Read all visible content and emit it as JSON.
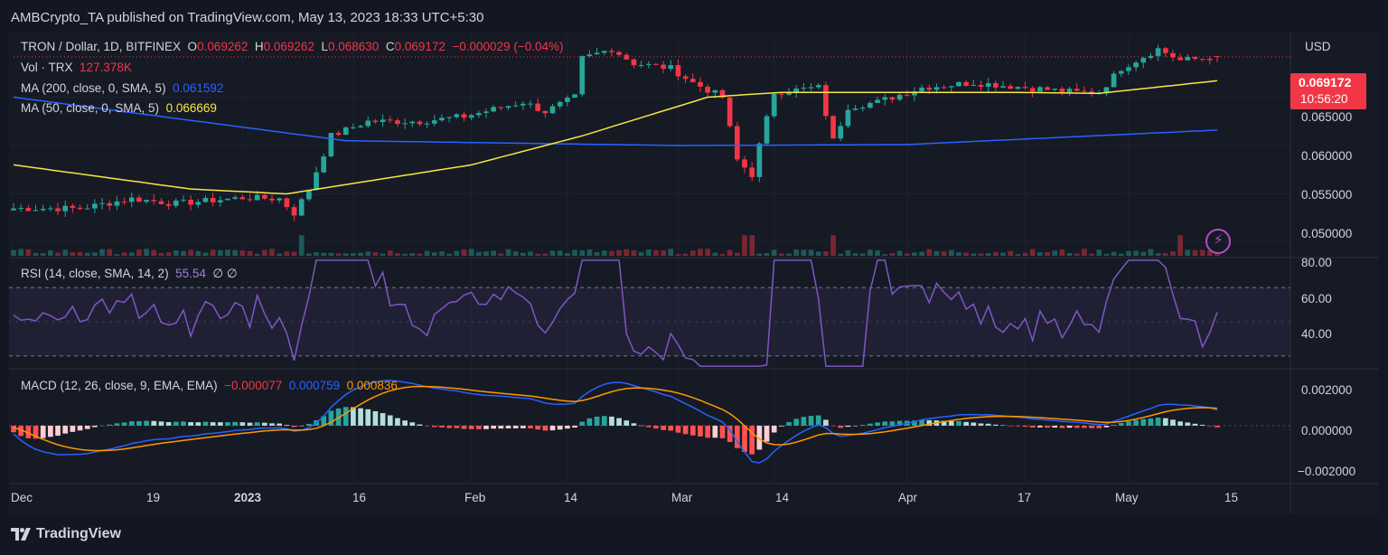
{
  "header": {
    "publisher_text": "AMBCrypto_TA published on TradingView.com, May 13, 2023 18:33 UTC+5:30"
  },
  "legend": {
    "symbol": "TRON / Dollar, 1D, BITFINEX",
    "o_label": "O",
    "o": "0.069262",
    "h_label": "H",
    "h": "0.069262",
    "l_label": "L",
    "l": "0.068630",
    "c_label": "C",
    "c": "0.069172",
    "change": "−0.000029 (−0.04%)",
    "vol_label": "Vol · TRX",
    "vol": "127.378K",
    "ma200_label": "MA (200, close, 0, SMA, 5)",
    "ma200": "0.061592",
    "ma50_label": "MA (50, close, 0, SMA, 5)",
    "ma50": "0.066669",
    "rsi_label": "RSI (14, close, SMA, 14, 2)",
    "rsi": "55.54",
    "rsi_extra": "∅ ∅",
    "macd_label": "MACD (12, 26, close, 9, EMA, EMA)",
    "macd_hist": "−0.000077",
    "macd": "0.000759",
    "macd_signal": "0.000836"
  },
  "price_axis": {
    "currency": "USD",
    "ticks": [
      "0.065000",
      "0.060000",
      "0.055000",
      "0.050000"
    ],
    "last_price": "0.069172",
    "countdown": "10:56:20"
  },
  "rsi_axis": {
    "ticks": [
      "80.00",
      "60.00",
      "40.00"
    ]
  },
  "macd_axis": {
    "ticks": [
      "0.002000",
      "0.000000",
      "−0.002000"
    ]
  },
  "time_axis": {
    "ticks": [
      "Dec",
      "19",
      "2023",
      "16",
      "Feb",
      "14",
      "Mar",
      "14",
      "Apr",
      "17",
      "May",
      "15"
    ]
  },
  "footer": {
    "logo_text": "TradingView"
  },
  "colors": {
    "up": "#26a69a",
    "down": "#f23645",
    "ma200": "#2962ff",
    "ma50": "#f7e645",
    "rsi": "#7e57c2",
    "macd": "#2962ff",
    "signal": "#ff9800"
  },
  "chart_data": {
    "type": "candlestick",
    "symbol": "TRON / Dollar",
    "interval": "1D",
    "exchange": "BITFINEX",
    "x_range": [
      "2022-12-01",
      "2023-05-13"
    ],
    "price_ylim": [
      0.0485,
      0.0715
    ],
    "anchors_close": [
      [
        "2022-12-01",
        0.0535
      ],
      [
        "2022-12-10",
        0.0535
      ],
      [
        "2022-12-17",
        0.0545
      ],
      [
        "2022-12-23",
        0.054
      ],
      [
        "2023-01-01",
        0.0546
      ],
      [
        "2023-01-06",
        0.0545
      ],
      [
        "2023-01-08",
        0.053
      ],
      [
        "2023-01-10",
        0.0555
      ],
      [
        "2023-01-13",
        0.061
      ],
      [
        "2023-01-18",
        0.0625
      ],
      [
        "2023-01-25",
        0.0625
      ],
      [
        "2023-01-31",
        0.063
      ],
      [
        "2023-02-08",
        0.0645
      ],
      [
        "2023-02-11",
        0.0635
      ],
      [
        "2023-02-15",
        0.065
      ],
      [
        "2023-02-16",
        0.069
      ],
      [
        "2023-02-20",
        0.07
      ],
      [
        "2023-02-23",
        0.0685
      ],
      [
        "2023-02-28",
        0.068
      ],
      [
        "2023-03-03",
        0.0665
      ],
      [
        "2023-03-07",
        0.065
      ],
      [
        "2023-03-09",
        0.0585
      ],
      [
        "2023-03-11",
        0.057
      ],
      [
        "2023-03-12",
        0.06
      ],
      [
        "2023-03-14",
        0.0655
      ],
      [
        "2023-03-20",
        0.066
      ],
      [
        "2023-03-22",
        0.0605
      ],
      [
        "2023-03-24",
        0.064
      ],
      [
        "2023-03-28",
        0.0645
      ],
      [
        "2023-04-03",
        0.066
      ],
      [
        "2023-04-10",
        0.0665
      ],
      [
        "2023-04-17",
        0.066
      ],
      [
        "2023-04-24",
        0.0655
      ],
      [
        "2023-04-27",
        0.0655
      ],
      [
        "2023-04-30",
        0.068
      ],
      [
        "2023-05-05",
        0.07
      ],
      [
        "2023-05-08",
        0.0688
      ],
      [
        "2023-05-13",
        0.069172
      ]
    ],
    "ma200_anchors": [
      [
        "2022-12-01",
        0.065
      ],
      [
        "2023-01-15",
        0.0605
      ],
      [
        "2023-03-01",
        0.06
      ],
      [
        "2023-04-01",
        0.0601
      ],
      [
        "2023-05-13",
        0.0616
      ]
    ],
    "ma50_anchors": [
      [
        "2022-12-01",
        0.058
      ],
      [
        "2022-12-25",
        0.0555
      ],
      [
        "2023-01-07",
        0.055
      ],
      [
        "2023-02-01",
        0.058
      ],
      [
        "2023-02-16",
        0.061
      ],
      [
        "2023-03-05",
        0.065
      ],
      [
        "2023-03-15",
        0.0655
      ],
      [
        "2023-04-15",
        0.0655
      ],
      [
        "2023-04-27",
        0.0654
      ],
      [
        "2023-05-13",
        0.0667
      ]
    ],
    "last_values": {
      "open": 0.069262,
      "high": 0.069262,
      "low": 0.06863,
      "close": 0.069172,
      "volume": "127.378K",
      "ma200": 0.061592,
      "ma50": 0.066669,
      "rsi": 55.54,
      "macd_hist": -7.7e-05,
      "macd": 0.000759,
      "macd_signal": 0.000836
    },
    "rsi_ylim": [
      23,
      87
    ],
    "rsi_levels": [
      70,
      30
    ],
    "macd_ylim": [
      -0.00275,
      0.0027
    ],
    "grid": true
  }
}
